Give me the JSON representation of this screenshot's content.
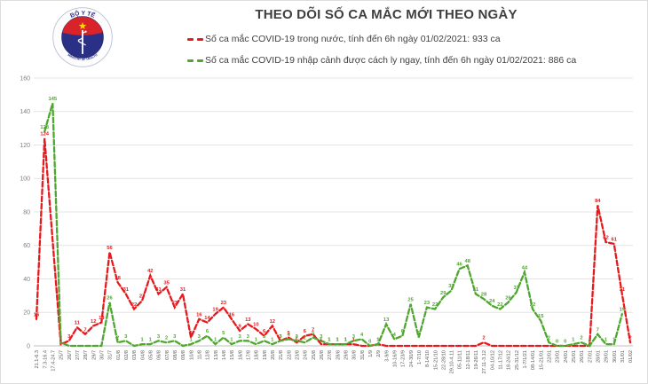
{
  "title": "THEO DÕI SỐ CA MẮC MỚI THEO NGÀY",
  "logo": {
    "top_text": "BỘ Y TẾ",
    "bottom_text": "MINISTRY OF HEALTH"
  },
  "legend": [
    {
      "id": "domestic",
      "color": "#e8191c",
      "label": "Số ca mắc COVID-19 trong nước, tính đến 6h ngày 01/02/2021: 933 ca"
    },
    {
      "id": "imported",
      "color": "#4ea72e",
      "label": "Số ca mắc COVID-19 nhập cảnh được cách ly ngay, tính đến 6h ngày 01/02/2021: 886 ca"
    }
  ],
  "chart_data": {
    "type": "line",
    "title": "THEO DÕI SỐ CA MẮC MỚI THEO NGÀY",
    "xlabel": "",
    "ylabel": "",
    "ylim": [
      0,
      160
    ],
    "yticks": [
      0,
      20,
      40,
      60,
      80,
      100,
      120,
      140,
      160
    ],
    "grid": true,
    "line_style": "dashed",
    "legend_position": "top",
    "categories": [
      "21.1-6.3",
      "7.3-16.4",
      "17.4-24.7",
      "25/7",
      "26/7",
      "27/7",
      "28/7",
      "29/7",
      "30/7",
      "31/7",
      "01/8",
      "02/8",
      "03/8",
      "04/8",
      "05/8",
      "06/8",
      "07/8",
      "08/8",
      "09/8",
      "10/8",
      "11/8",
      "12/8",
      "13/8",
      "14/8",
      "15/8",
      "16/8",
      "17/8",
      "18/8",
      "19/8",
      "20/8",
      "21/8",
      "22/8",
      "23/8",
      "24/8",
      "25/8",
      "26/8",
      "27/8",
      "28/8",
      "29/8",
      "30/8",
      "31/8",
      "1/9",
      "2/9",
      "3-9/9",
      "10-16/9",
      "17-23/9",
      "24-30/9",
      "1-7/10",
      "8-14/10",
      "15-21/10",
      "22-28/10",
      "29.10-4.11",
      "05-11/11",
      "12-18/11",
      "19-26/11",
      "27.11-3.12",
      "04-10/12",
      "11-17/12",
      "18-24/12",
      "25-31/12",
      "1-7/1/21",
      "08-14/01",
      "15-21/01",
      "22/01",
      "23/01",
      "24/01",
      "25/01",
      "26/01",
      "27/01",
      "28/01",
      "29/01",
      "30/01",
      "31/01",
      "01/02"
    ],
    "series": [
      {
        "id": "domestic",
        "name": "Số ca mắc COVID-19 trong nước",
        "color": "#e8191c",
        "values": [
          16,
          124,
          null,
          1,
          3,
          11,
          7,
          12,
          14,
          56,
          38,
          31,
          22,
          27,
          42,
          31,
          35,
          23,
          31,
          5,
          16,
          14,
          19,
          23,
          16,
          9,
          13,
          10,
          6,
          12,
          3,
          5,
          2,
          6,
          7,
          1,
          1,
          1,
          1,
          1,
          0,
          0,
          1,
          0,
          0,
          0,
          0,
          0,
          0,
          0,
          0,
          0,
          0,
          0,
          0,
          2,
          0,
          0,
          0,
          0,
          0,
          0,
          0,
          0,
          0,
          0,
          0,
          0,
          0,
          84,
          62,
          61,
          31,
          2
        ],
        "labels": [
          "16",
          "124",
          "",
          "1",
          "3",
          "11",
          "7",
          "12",
          "14",
          "56",
          "38",
          "31",
          "22",
          "27",
          "42",
          "31",
          "35",
          "23",
          "31",
          "5",
          "16",
          "14",
          "19",
          "23",
          "16",
          "9",
          "13",
          "10",
          "6",
          "12",
          "3",
          "5",
          "2",
          "6",
          "7",
          "1",
          "1",
          "1",
          "1",
          "1",
          "",
          "",
          "1",
          "",
          "",
          "",
          "",
          "",
          "",
          "",
          "",
          "",
          "",
          "",
          "",
          "2",
          "",
          "",
          "",
          "",
          "",
          "",
          "",
          "",
          "",
          "",
          "",
          "",
          "",
          "84",
          "62",
          "61",
          "31",
          "2"
        ]
      },
      {
        "id": "imported",
        "name": "Số ca mắc COVID-19 nhập cảnh được cách ly ngay",
        "color": "#4ea72e",
        "values": [
          null,
          128,
          145,
          2,
          0,
          0,
          0,
          0,
          0,
          26,
          2,
          3,
          0,
          1,
          1,
          3,
          2,
          3,
          0,
          1,
          3,
          6,
          1,
          5,
          1,
          3,
          3,
          1,
          3,
          1,
          3,
          4,
          3,
          2,
          5,
          3,
          1,
          1,
          1,
          3,
          4,
          0,
          1,
          13,
          4,
          6,
          25,
          5,
          23,
          22,
          29,
          33,
          46,
          48,
          31,
          28,
          24,
          22,
          26,
          32,
          44,
          22,
          15,
          2,
          0,
          0,
          1,
          2,
          0,
          7,
          1,
          1,
          19,
          null
        ],
        "labels": [
          "",
          "128",
          "145",
          "2",
          "",
          "",
          "",
          "",
          "",
          "26",
          "2",
          "3",
          "",
          "1",
          "1",
          "3",
          "2",
          "3",
          "",
          "1",
          "3",
          "6",
          "1",
          "5",
          "1",
          "3",
          "3",
          "1",
          "3",
          "1",
          "3",
          "4",
          "3",
          "2",
          "5",
          "3",
          "1",
          "1",
          "1",
          "3",
          "4",
          "0",
          "1",
          "13",
          "4",
          "6",
          "25",
          "5",
          "23",
          "22",
          "29",
          "33",
          "46",
          "48",
          "31",
          "28",
          "24",
          "22",
          "26",
          "32",
          "44",
          "22",
          "15",
          "2",
          "0",
          "0",
          "1",
          "2",
          "0",
          "7",
          "1",
          "1",
          "19",
          ""
        ]
      }
    ]
  }
}
